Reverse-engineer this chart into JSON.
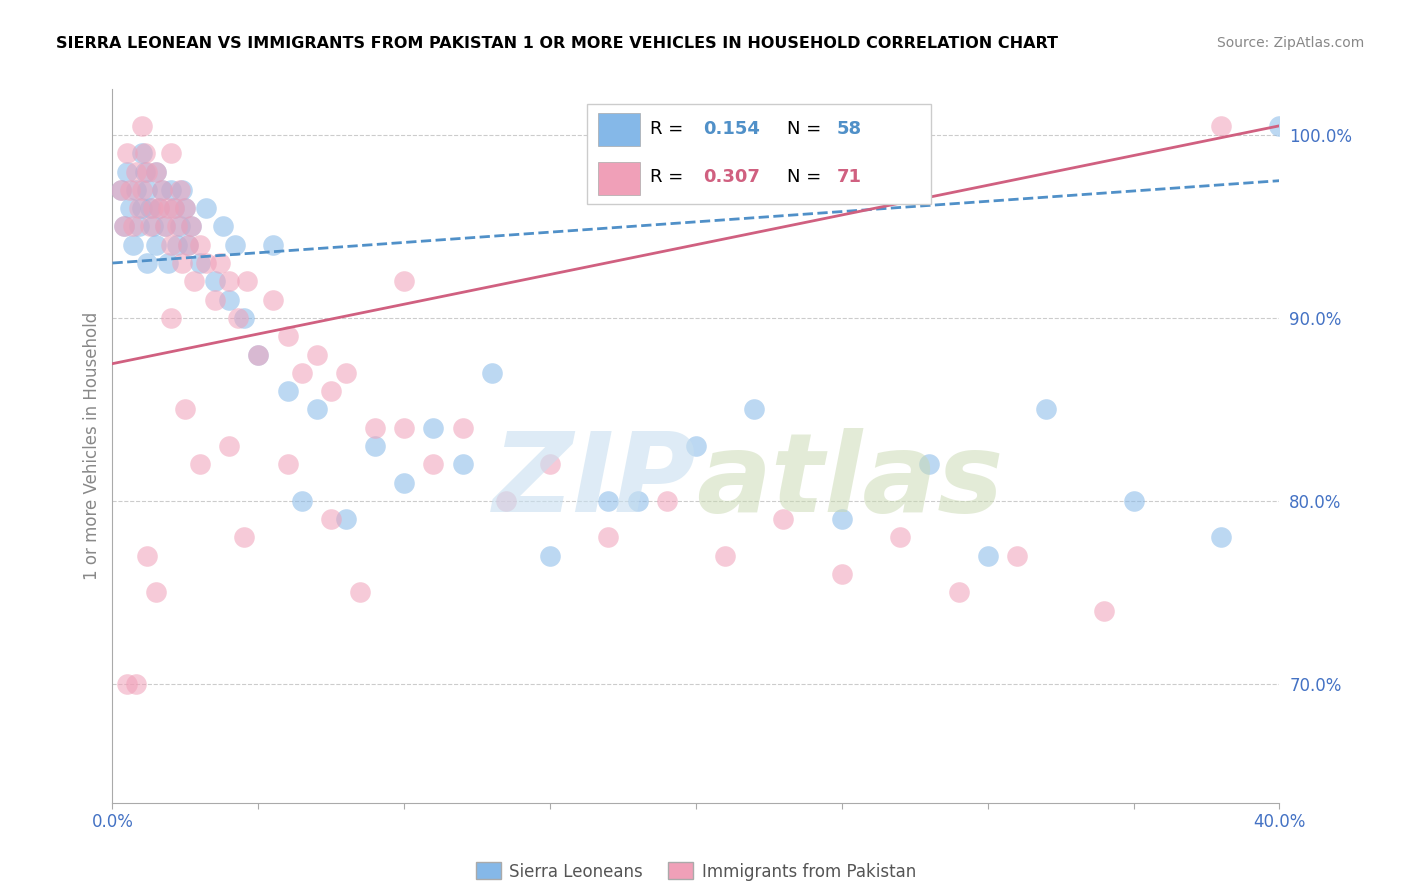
{
  "title": "SIERRA LEONEAN VS IMMIGRANTS FROM PAKISTAN 1 OR MORE VEHICLES IN HOUSEHOLD CORRELATION CHART",
  "source": "Source: ZipAtlas.com",
  "ylabel": "1 or more Vehicles in Household",
  "xlim": [
    0.0,
    0.4
  ],
  "ylim": [
    0.635,
    1.025
  ],
  "blue_R": 0.154,
  "blue_N": 58,
  "pink_R": 0.307,
  "pink_N": 71,
  "blue_color": "#85B8E8",
  "pink_color": "#F0A0B8",
  "blue_line_color": "#5090C8",
  "pink_line_color": "#D06080",
  "legend_label_blue": "Sierra Leoneans",
  "legend_label_pink": "Immigrants from Pakistan",
  "ytick_positions": [
    0.7,
    0.8,
    0.9,
    1.0
  ],
  "ytick_labels": [
    "70.0%",
    "80.0%",
    "90.0%",
    "100.0%"
  ],
  "blue_line_x0": 0.0,
  "blue_line_y0": 0.93,
  "blue_line_x1": 0.4,
  "blue_line_y1": 0.975,
  "pink_line_x0": 0.0,
  "pink_line_y0": 0.875,
  "pink_line_x1": 0.4,
  "pink_line_y1": 1.005,
  "blue_pts_x": [
    0.003,
    0.004,
    0.005,
    0.006,
    0.007,
    0.008,
    0.009,
    0.01,
    0.01,
    0.011,
    0.012,
    0.012,
    0.013,
    0.014,
    0.015,
    0.015,
    0.016,
    0.017,
    0.018,
    0.019,
    0.02,
    0.021,
    0.022,
    0.023,
    0.024,
    0.025,
    0.026,
    0.027,
    0.03,
    0.032,
    0.035,
    0.038,
    0.04,
    0.042,
    0.045,
    0.05,
    0.055,
    0.06,
    0.065,
    0.07,
    0.08,
    0.09,
    0.1,
    0.11,
    0.12,
    0.13,
    0.15,
    0.17,
    0.18,
    0.2,
    0.22,
    0.25,
    0.28,
    0.3,
    0.32,
    0.35,
    0.38,
    0.4
  ],
  "blue_pts_y": [
    0.97,
    0.95,
    0.98,
    0.96,
    0.94,
    0.97,
    0.95,
    0.99,
    0.96,
    0.98,
    0.97,
    0.93,
    0.96,
    0.95,
    0.98,
    0.94,
    0.96,
    0.97,
    0.95,
    0.93,
    0.97,
    0.96,
    0.94,
    0.95,
    0.97,
    0.96,
    0.94,
    0.95,
    0.93,
    0.96,
    0.92,
    0.95,
    0.91,
    0.94,
    0.9,
    0.88,
    0.94,
    0.86,
    0.8,
    0.85,
    0.79,
    0.83,
    0.81,
    0.84,
    0.82,
    0.87,
    0.77,
    0.8,
    0.8,
    0.83,
    0.85,
    0.79,
    0.82,
    0.77,
    0.85,
    0.8,
    0.78,
    1.005
  ],
  "pink_pts_x": [
    0.003,
    0.004,
    0.005,
    0.006,
    0.007,
    0.008,
    0.009,
    0.01,
    0.01,
    0.011,
    0.012,
    0.013,
    0.014,
    0.015,
    0.016,
    0.017,
    0.018,
    0.019,
    0.02,
    0.02,
    0.021,
    0.022,
    0.023,
    0.024,
    0.025,
    0.026,
    0.027,
    0.028,
    0.03,
    0.032,
    0.035,
    0.037,
    0.04,
    0.043,
    0.046,
    0.05,
    0.055,
    0.06,
    0.065,
    0.07,
    0.075,
    0.08,
    0.09,
    0.1,
    0.11,
    0.12,
    0.135,
    0.15,
    0.17,
    0.19,
    0.21,
    0.23,
    0.25,
    0.27,
    0.29,
    0.31,
    0.34,
    0.005,
    0.008,
    0.012,
    0.015,
    0.02,
    0.025,
    0.03,
    0.04,
    0.045,
    0.06,
    0.075,
    0.085,
    0.1,
    0.38
  ],
  "pink_pts_y": [
    0.97,
    0.95,
    0.99,
    0.97,
    0.95,
    0.98,
    0.96,
    1.005,
    0.97,
    0.99,
    0.98,
    0.95,
    0.96,
    0.98,
    0.96,
    0.97,
    0.95,
    0.96,
    0.99,
    0.94,
    0.96,
    0.95,
    0.97,
    0.93,
    0.96,
    0.94,
    0.95,
    0.92,
    0.94,
    0.93,
    0.91,
    0.93,
    0.92,
    0.9,
    0.92,
    0.88,
    0.91,
    0.89,
    0.87,
    0.88,
    0.86,
    0.87,
    0.84,
    0.84,
    0.82,
    0.84,
    0.8,
    0.82,
    0.78,
    0.8,
    0.77,
    0.79,
    0.76,
    0.78,
    0.75,
    0.77,
    0.74,
    0.7,
    0.7,
    0.77,
    0.75,
    0.9,
    0.85,
    0.82,
    0.83,
    0.78,
    0.82,
    0.79,
    0.75,
    0.92,
    1.005
  ]
}
